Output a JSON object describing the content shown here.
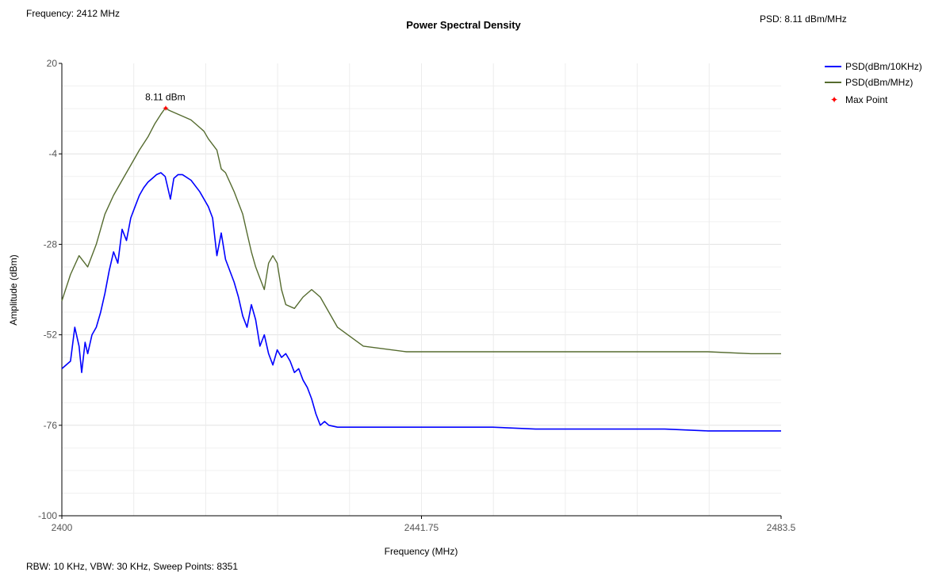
{
  "header": {
    "frequency_readout": "Frequency: 2412 MHz",
    "psd_readout": "PSD: 8.11 dBm/MHz"
  },
  "footer": {
    "settings": "RBW: 10 KHz,  VBW: 30 KHz,  Sweep Points: 8351"
  },
  "chart_data": {
    "type": "line",
    "title": "Power Spectral Density",
    "xlabel": "Frequency (MHz)",
    "ylabel": "Amplitude (dBm)",
    "xlim": [
      2400,
      2483.5
    ],
    "ylim": [
      -100,
      20
    ],
    "x_tick_labels": [
      "2400",
      "2441.75",
      "2483.5"
    ],
    "y_tick_labels": [
      "20",
      "-4",
      "-28",
      "-52",
      "-76",
      "-100"
    ],
    "grid": true,
    "legend_position": "top-right",
    "colors": {
      "psd_10khz": "#0000ff",
      "psd_mhz": "#556b2f",
      "max_point": "#ff0000"
    },
    "series": [
      {
        "name": "PSD(dBm/10KHz)",
        "x": [
          2400,
          2401,
          2401.5,
          2402,
          2402.3,
          2402.7,
          2403,
          2403.5,
          2404,
          2404.5,
          2405,
          2405.5,
          2406,
          2406.5,
          2407,
          2407.5,
          2408,
          2408.5,
          2409,
          2409.5,
          2410,
          2410.5,
          2411,
          2411.5,
          2412,
          2412.3,
          2412.6,
          2413,
          2413.5,
          2414,
          2415,
          2416,
          2417,
          2417.5,
          2418,
          2418.5,
          2419,
          2420,
          2420.5,
          2421,
          2421.5,
          2422,
          2422.5,
          2423,
          2423.5,
          2424,
          2424.5,
          2425,
          2425.5,
          2426,
          2426.5,
          2427,
          2427.5,
          2428,
          2428.5,
          2429,
          2429.5,
          2430,
          2430.5,
          2431,
          2432,
          2435,
          2440,
          2445,
          2450,
          2455,
          2460,
          2465,
          2470,
          2475,
          2480,
          2483.5
        ],
        "y": [
          -61,
          -59,
          -50,
          -55,
          -62,
          -54,
          -57,
          -52,
          -50,
          -46,
          -41,
          -35,
          -30,
          -33,
          -24,
          -27,
          -21,
          -18,
          -15,
          -13,
          -11.5,
          -10.5,
          -9.5,
          -9,
          -10,
          -13,
          -16,
          -10.5,
          -9.5,
          -9.5,
          -11,
          -14,
          -18,
          -21,
          -31,
          -25,
          -32,
          -38,
          -42,
          -47,
          -50,
          -44,
          -48,
          -55,
          -52,
          -57,
          -60,
          -56,
          -58,
          -57,
          -59,
          -62,
          -61,
          -64,
          -66,
          -69,
          -73,
          -76,
          -75,
          -76,
          -76.5,
          -76.5,
          -76.5,
          -76.5,
          -76.5,
          -77,
          -77,
          -77,
          -77,
          -77.5,
          -77.5,
          -77.5
        ]
      },
      {
        "name": "PSD(dBm/MHz)",
        "x": [
          2400,
          2401,
          2402,
          2403,
          2404,
          2405,
          2406,
          2407,
          2408,
          2409,
          2410,
          2410.8,
          2411.5,
          2412,
          2412.5,
          2413,
          2414,
          2415,
          2416,
          2416.5,
          2417,
          2418,
          2418.5,
          2419,
          2420,
          2421,
          2421.5,
          2422,
          2422.5,
          2423,
          2423.5,
          2424,
          2424.5,
          2425,
          2425.5,
          2426,
          2427,
          2428,
          2429,
          2430,
          2432,
          2435,
          2440,
          2445,
          2450,
          2455,
          2460,
          2465,
          2470,
          2475,
          2480,
          2483.5
        ],
        "y": [
          -43,
          -36,
          -31,
          -34,
          -28,
          -20,
          -15,
          -11,
          -7,
          -3,
          0.5,
          4,
          6.5,
          8.11,
          7.5,
          7,
          6,
          5,
          3,
          2,
          0,
          -3,
          -8,
          -9,
          -14,
          -20,
          -25,
          -30,
          -34,
          -37,
          -40,
          -33,
          -31,
          -33,
          -40,
          -44,
          -45,
          -42,
          -40,
          -42,
          -50,
          -55,
          -56.5,
          -56.5,
          -56.5,
          -56.5,
          -56.5,
          -56.5,
          -56.5,
          -56.5,
          -57,
          -57
        ]
      }
    ],
    "annotations": [
      {
        "name": "Max Point",
        "text": "8.11 dBm",
        "x": 2412,
        "y": 8.11
      }
    ]
  }
}
